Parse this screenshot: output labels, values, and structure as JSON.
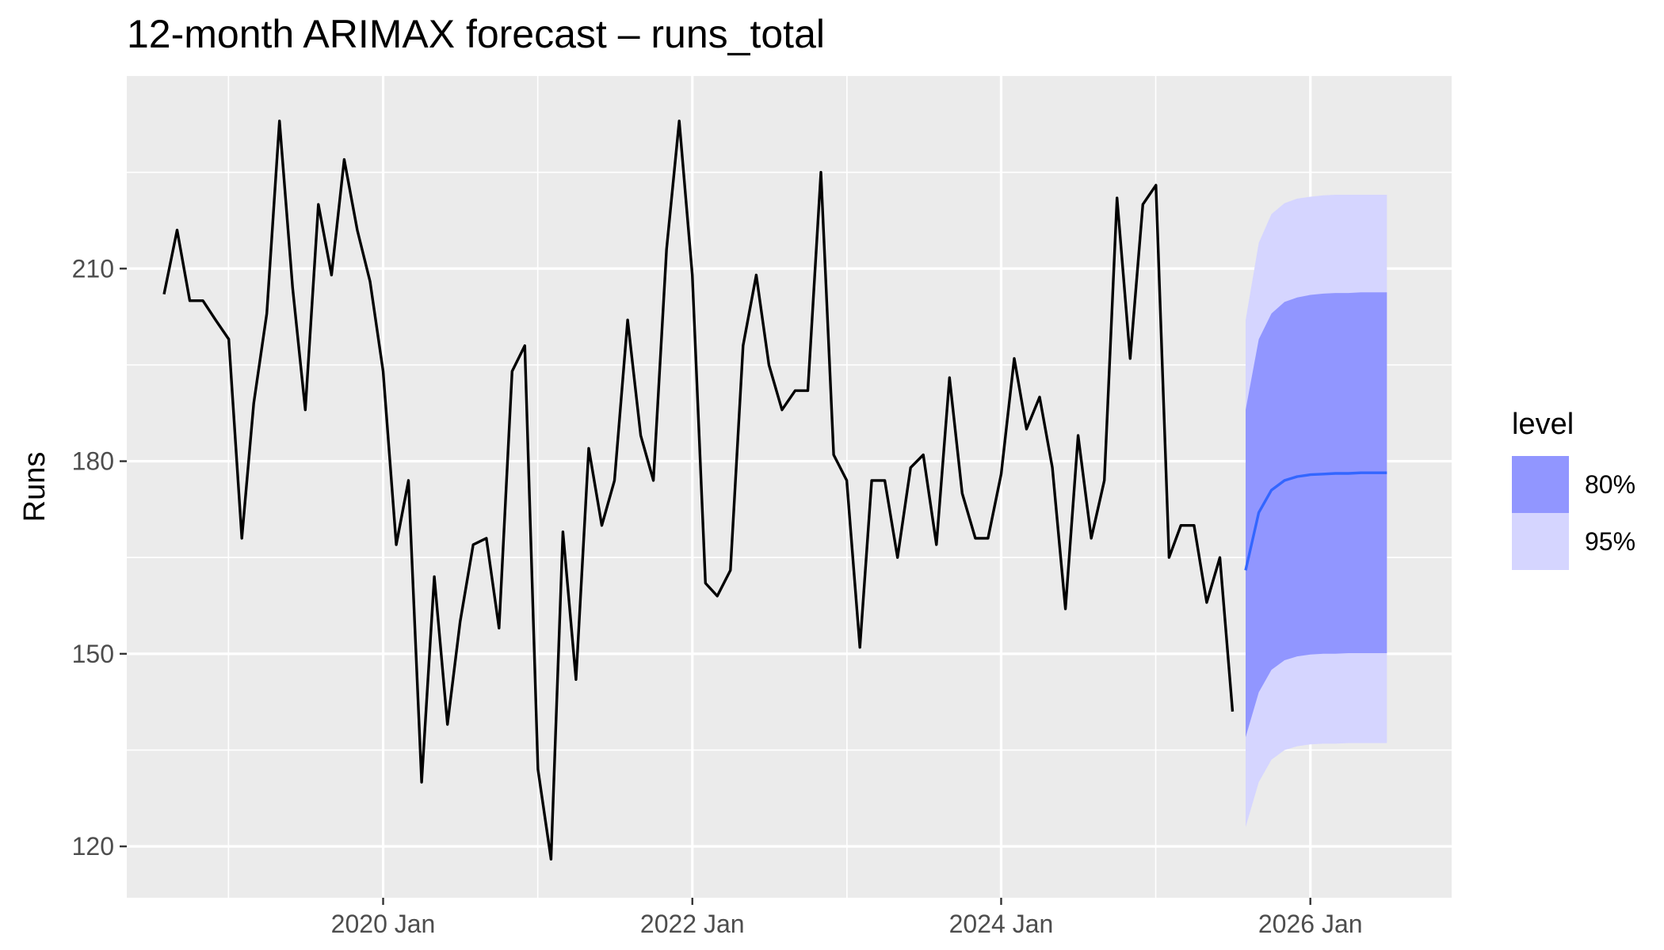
{
  "title": "12-month ARIMAX forecast – runs_total",
  "chart_data": {
    "type": "line",
    "title": "12-month ARIMAX forecast – runs_total",
    "xlabel": "",
    "ylabel": "Runs",
    "xlim": [
      "2018-05-05",
      "2026-12-01"
    ],
    "ylim": [
      112,
      240
    ],
    "x_ticks": [
      {
        "date": "2020-01-01",
        "label": "2020 Jan"
      },
      {
        "date": "2022-01-01",
        "label": "2022 Jan"
      },
      {
        "date": "2024-01-01",
        "label": "2024 Jan"
      },
      {
        "date": "2026-01-01",
        "label": "2026 Jan"
      }
    ],
    "y_ticks": [
      120,
      150,
      180,
      210
    ],
    "grid": true,
    "legend": {
      "title": "level",
      "position": "right",
      "entries": [
        "80%",
        "95%"
      ]
    },
    "colors": {
      "panel": "#ebebeb",
      "grid": "#ffffff",
      "observed": "#000000",
      "forecast_mean": "#3366ff",
      "band80": "#9196ff",
      "band95": "#d5d5ff"
    },
    "observed": {
      "start": "2018-08",
      "values": [
        206,
        216,
        205,
        205,
        202,
        199,
        168,
        189,
        203,
        233,
        207,
        188,
        220,
        209,
        227,
        216,
        208,
        194,
        167,
        177,
        130,
        162,
        139,
        155,
        167,
        168,
        154,
        194,
        198,
        132,
        118,
        169,
        146,
        182,
        170,
        177,
        202,
        184,
        177,
        213,
        233,
        209,
        161,
        159,
        163,
        198,
        209,
        195,
        188,
        191,
        191,
        225,
        181,
        177,
        151,
        177,
        177,
        165,
        179,
        181,
        167,
        193,
        175,
        168,
        168,
        178,
        196,
        185,
        190,
        179,
        157,
        184,
        168,
        177,
        221,
        196,
        220,
        223,
        165,
        170,
        170,
        158,
        165,
        141
      ]
    },
    "forecast": {
      "start": "2025-08",
      "mean": [
        163,
        172,
        175.5,
        177,
        177.6,
        177.9,
        178.0,
        178.1,
        178.1,
        178.2,
        178.2,
        178.2
      ],
      "lo80": [
        137,
        144,
        147.5,
        149,
        149.6,
        149.9,
        150.0,
        150.0,
        150.1,
        150.1,
        150.1,
        150.1
      ],
      "hi80": [
        188,
        199,
        203,
        204.8,
        205.5,
        205.9,
        206.1,
        206.2,
        206.2,
        206.3,
        206.3,
        206.3
      ],
      "lo95": [
        123,
        130,
        133.5,
        135,
        135.6,
        135.9,
        136.0,
        136.0,
        136.1,
        136.1,
        136.1,
        136.1
      ],
      "hi95": [
        202,
        214,
        218.5,
        220.2,
        220.9,
        221.2,
        221.4,
        221.5,
        221.5,
        221.5,
        221.5,
        221.5
      ]
    }
  }
}
